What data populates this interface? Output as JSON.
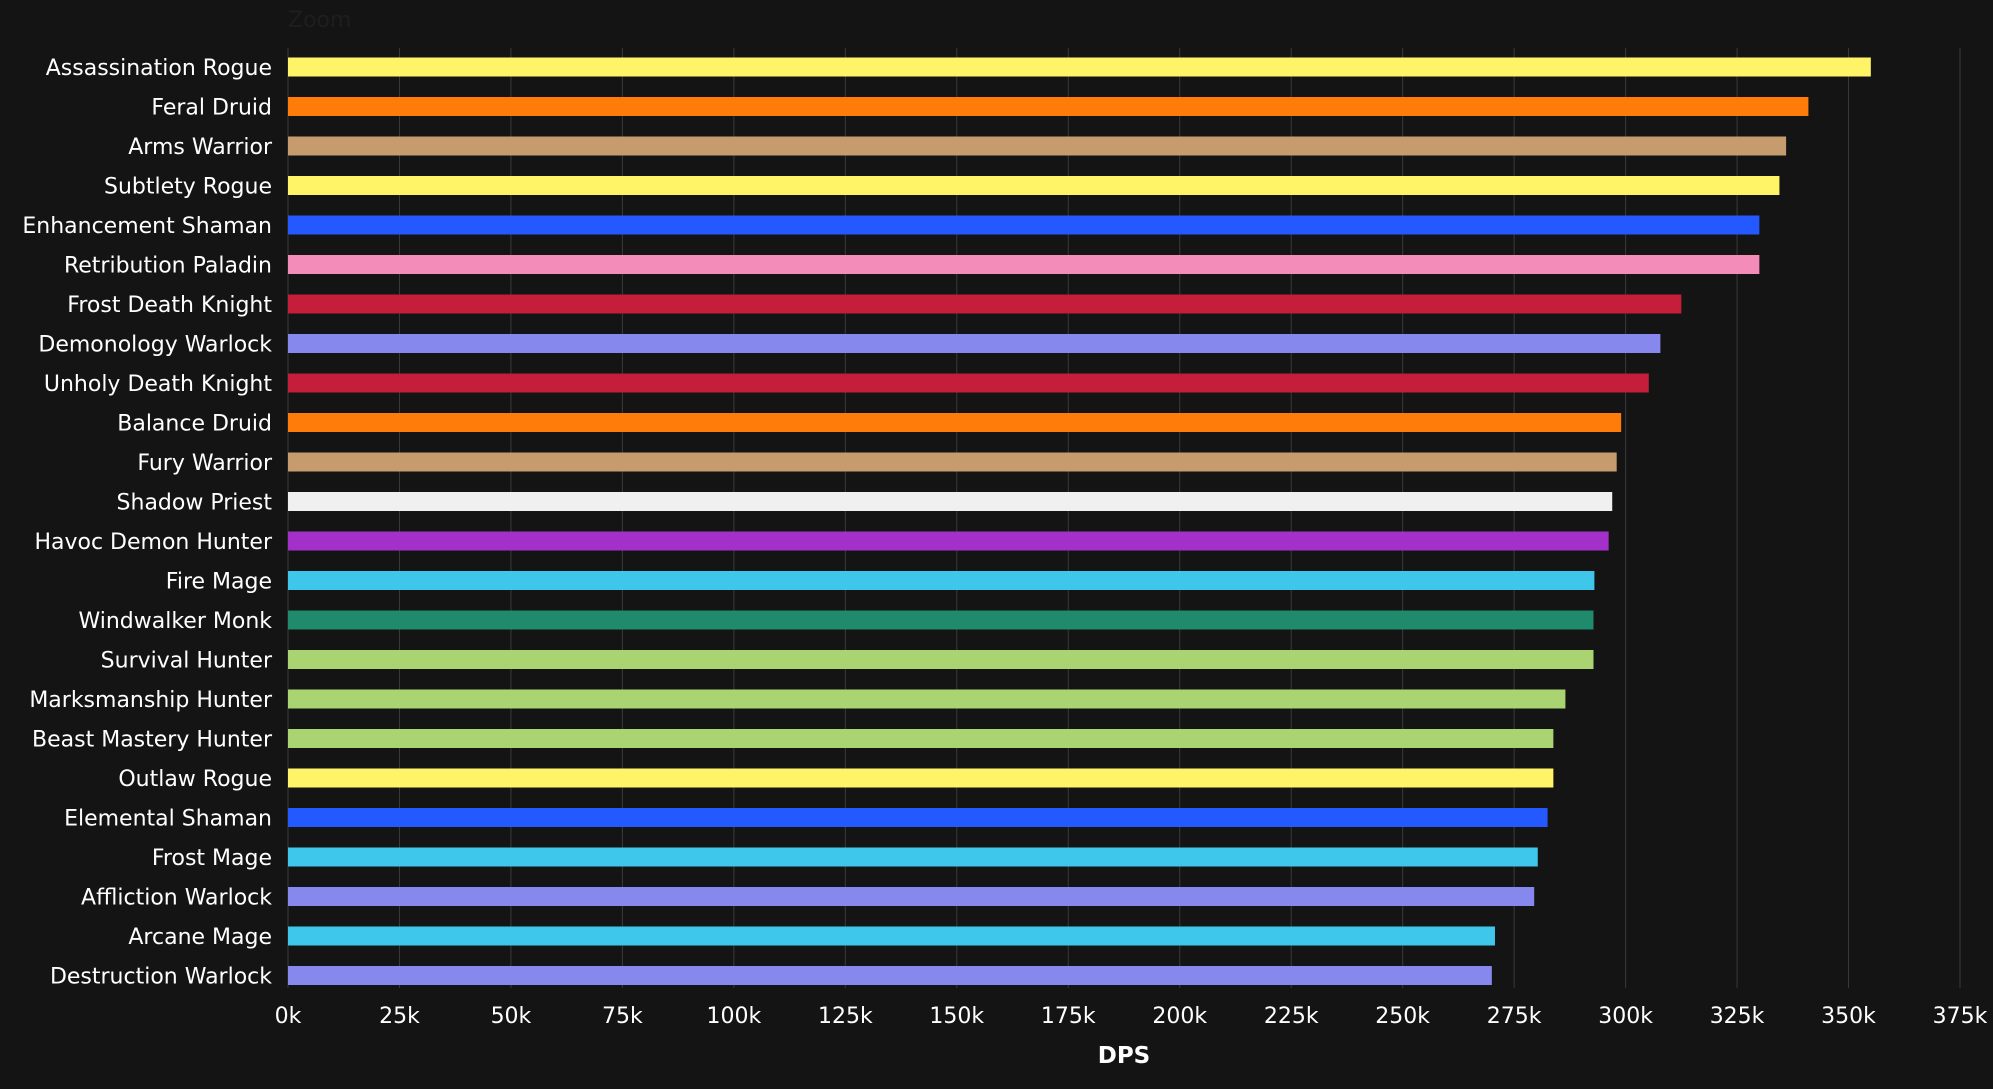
{
  "zoom_label": "Zoom",
  "chart_data": {
    "type": "bar",
    "orientation": "horizontal",
    "xlabel": "DPS",
    "xlim": [
      0,
      375000
    ],
    "tick_values": [
      0,
      25000,
      50000,
      75000,
      100000,
      125000,
      150000,
      175000,
      200000,
      225000,
      250000,
      275000,
      300000,
      325000,
      350000,
      375000
    ],
    "tick_labels": [
      "0k",
      "25k",
      "50k",
      "75k",
      "100k",
      "125k",
      "150k",
      "175k",
      "200k",
      "225k",
      "250k",
      "275k",
      "300k",
      "325k",
      "350k",
      "375k"
    ],
    "grid": true,
    "legend": "none",
    "categories": [
      "Assassination Rogue",
      "Feral Druid",
      "Arms Warrior",
      "Subtlety Rogue",
      "Enhancement Shaman",
      "Retribution Paladin",
      "Frost Death Knight",
      "Demonology Warlock",
      "Unholy Death Knight",
      "Balance Druid",
      "Fury Warrior",
      "Shadow Priest",
      "Havoc Demon Hunter",
      "Fire Mage",
      "Windwalker Monk",
      "Survival Hunter",
      "Marksmanship Hunter",
      "Beast Mastery Hunter",
      "Outlaw Rogue",
      "Elemental Shaman",
      "Frost Mage",
      "Affliction Warlock",
      "Arcane Mage",
      "Destruction Warlock"
    ],
    "values": [
      355000,
      341000,
      336000,
      334500,
      330000,
      330000,
      312500,
      307800,
      305200,
      299000,
      298000,
      297000,
      296200,
      293000,
      292800,
      292800,
      286500,
      283800,
      283800,
      282500,
      280300,
      279500,
      270700,
      270000
    ],
    "colors": [
      "#FFF468",
      "#FF7C0A",
      "#C69B6D",
      "#FFF468",
      "#2459FF",
      "#F48CBA",
      "#C41E3A",
      "#8788EE",
      "#C41E3A",
      "#FF7C0A",
      "#C69B6D",
      "#F0F0F0",
      "#A330C9",
      "#3FC7EB",
      "#1F8A6C",
      "#AAD372",
      "#AAD372",
      "#AAD372",
      "#FFF468",
      "#2459FF",
      "#3FC7EB",
      "#8788EE",
      "#3FC7EB",
      "#8788EE"
    ]
  }
}
